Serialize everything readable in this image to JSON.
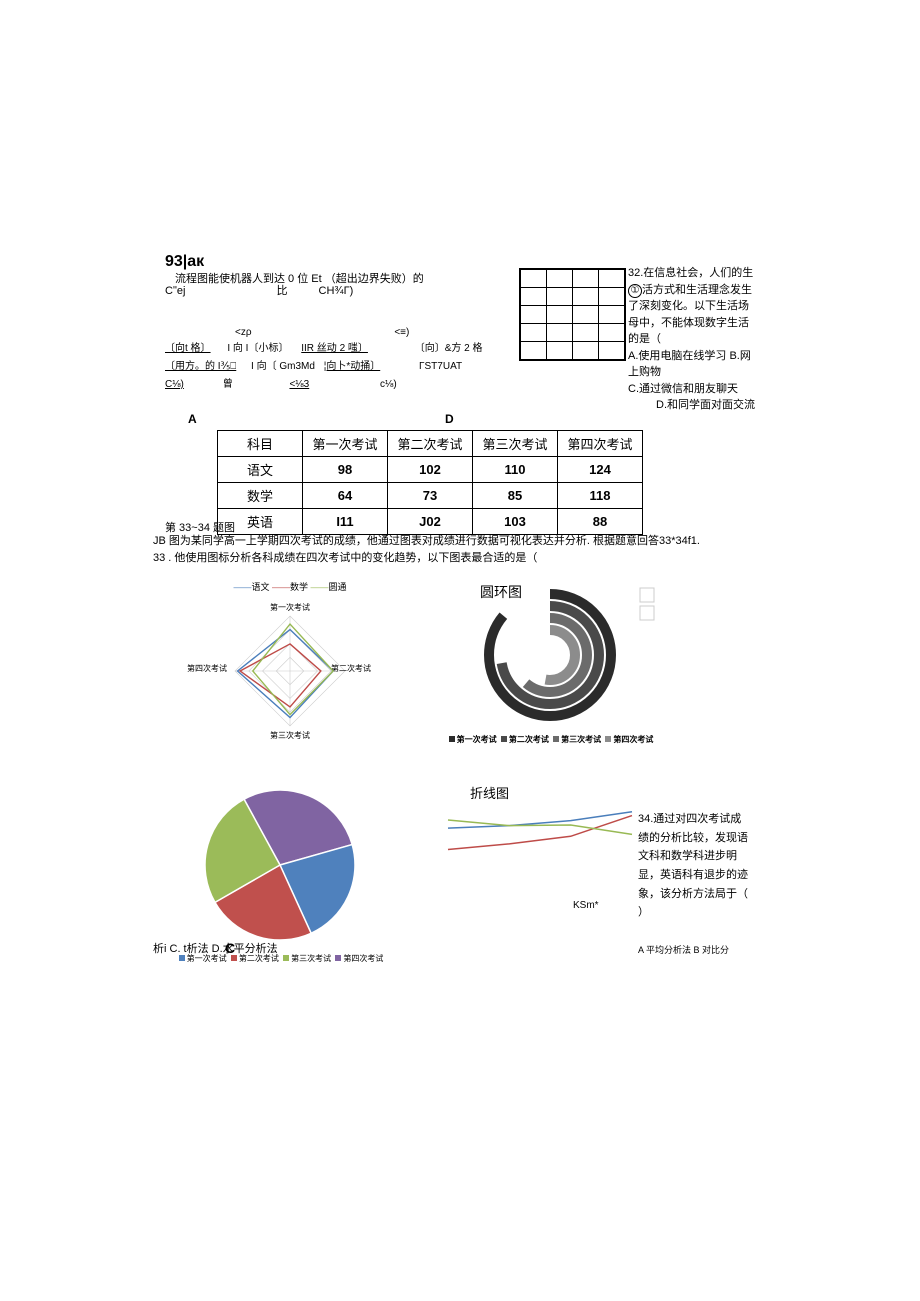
{
  "header_code": "93|ак",
  "flow_intro": "流程图能使机器人到达 0 位 Et （超出边界失败）的",
  "flow_row1": {
    "a": "Cʺej",
    "b": "比",
    "c": "CH¾Γ)"
  },
  "flow_row2": {
    "a": "<zρ",
    "b": "<≡)"
  },
  "flow_row3": {
    "a": "〔向t     格〕",
    "b": "I 向 I〔小标〕",
    "c": "IIR 丝动 2 嗤〕",
    "d": "〔向〕&方 2 格"
  },
  "flow_row4": {
    "a": "〔用方。的 I⅗⎕",
    "b": "I 向〔 Gm3Md",
    "c": "¦向卜*动捅〕",
    "d": "ΓST7UAT"
  },
  "flow_row5": {
    "a": "C⅛)",
    "b": "曾",
    "c": "<⅛3",
    "d": "c⅛)"
  },
  "q32": {
    "num": "32",
    "lead": ".在信息社会，人们的生",
    "circled": "①",
    "body": "活方式和生活理念发生了深刻变化。以下生活场母中，不能体现数字生活的是（",
    "a": "A.使用电脑在线学习 B.网上购物",
    "c": "C.通过微信和朋友聊天",
    "d": "D.和同学面对面交流"
  },
  "labels": {
    "a": "A",
    "d": "D"
  },
  "table": {
    "headers": [
      "科目",
      "第一次考试",
      "第二次考试",
      "第三次考试",
      "第四次考试"
    ],
    "rows": [
      [
        "语文",
        "98",
        "102",
        "110",
        "124"
      ],
      [
        "数学",
        "64",
        "73",
        "85",
        "118"
      ],
      [
        "英语",
        "I11",
        "J02",
        "103",
        "88"
      ]
    ]
  },
  "caption33": "第 33~34 题图",
  "jb_text": "JB 图为某同学高一上学期四次考试的成绩，他通过图表对成绩进行数据可视化表达并分析. 根据题意回答33*34f1.",
  "q33": "33    . 他使用图标分析各科成绩在四次考试中的变化趋势，以下图表最合适的是（",
  "radar": {
    "legend_items": [
      "语文",
      "数学",
      "圆通"
    ],
    "legend_colors": [
      "#4a7ebb",
      "#be4b48",
      "#98b954"
    ],
    "axis_labels": [
      "第一次考试",
      "第二次考试",
      "第三次考试",
      "第四次考试"
    ],
    "series": [
      {
        "color": "#4a7ebb",
        "values": [
          98,
          102,
          110,
          124
        ]
      },
      {
        "color": "#be4b48",
        "values": [
          64,
          73,
          85,
          118
        ]
      },
      {
        "color": "#98b954",
        "values": [
          111,
          102,
          103,
          88
        ]
      }
    ],
    "max": 130
  },
  "donut": {
    "title": "圆环图",
    "legend_items": [
      "第一次考试",
      "第二次考试",
      "第三次考试",
      "第四次考试"
    ],
    "legend_colors": [
      "#2b2b2b",
      "#4a4a4a",
      "#6b6b6b",
      "#8c8c8c"
    ],
    "rings": [
      {
        "color": "#2b2b2b",
        "outer": 66,
        "inner": 56,
        "sweep": 310
      },
      {
        "color": "#4a4a4a",
        "outer": 54,
        "inner": 44,
        "sweep": 260
      },
      {
        "color": "#6b6b6b",
        "outer": 42,
        "inner": 32,
        "sweep": 220
      },
      {
        "color": "#8c8c8c",
        "outer": 30,
        "inner": 20,
        "sweep": 190
      }
    ],
    "icon_btn_color": "#cccccc"
  },
  "pie": {
    "slices": [
      {
        "color": "#8064a2",
        "value": 124
      },
      {
        "color": "#4f81bd",
        "value": 98
      },
      {
        "color": "#c0504d",
        "value": 102
      },
      {
        "color": "#9bbb59",
        "value": 110
      }
    ],
    "legend_items": [
      "第一次考试",
      "第二次考试",
      "第三次考试",
      "第四次考试"
    ],
    "legend_colors": [
      "#4f81bd",
      "#c0504d",
      "#9bbb59",
      "#8064a2"
    ]
  },
  "line": {
    "title": "折线图",
    "series": [
      {
        "color": "#4a7ebb",
        "points": [
          98,
          102,
          110,
          124
        ]
      },
      {
        "color": "#be4b48",
        "points": [
          64,
          73,
          85,
          118
        ]
      },
      {
        "color": "#98b954",
        "points": [
          111,
          102,
          103,
          88
        ]
      }
    ],
    "ymin": 60,
    "ymax": 130
  },
  "q34": {
    "text": "34.通过对四次考试成绩的分析比较，发现语文科和数学科进步明显，英语科有退步的迹象，该分析方法局于（  ）",
    "sub": "A 平均分析法 B 对比分"
  },
  "ksm": "KSm*",
  "options_bottom": "析i       C.          t析法 D.水平分析法",
  "mark_c": "C"
}
